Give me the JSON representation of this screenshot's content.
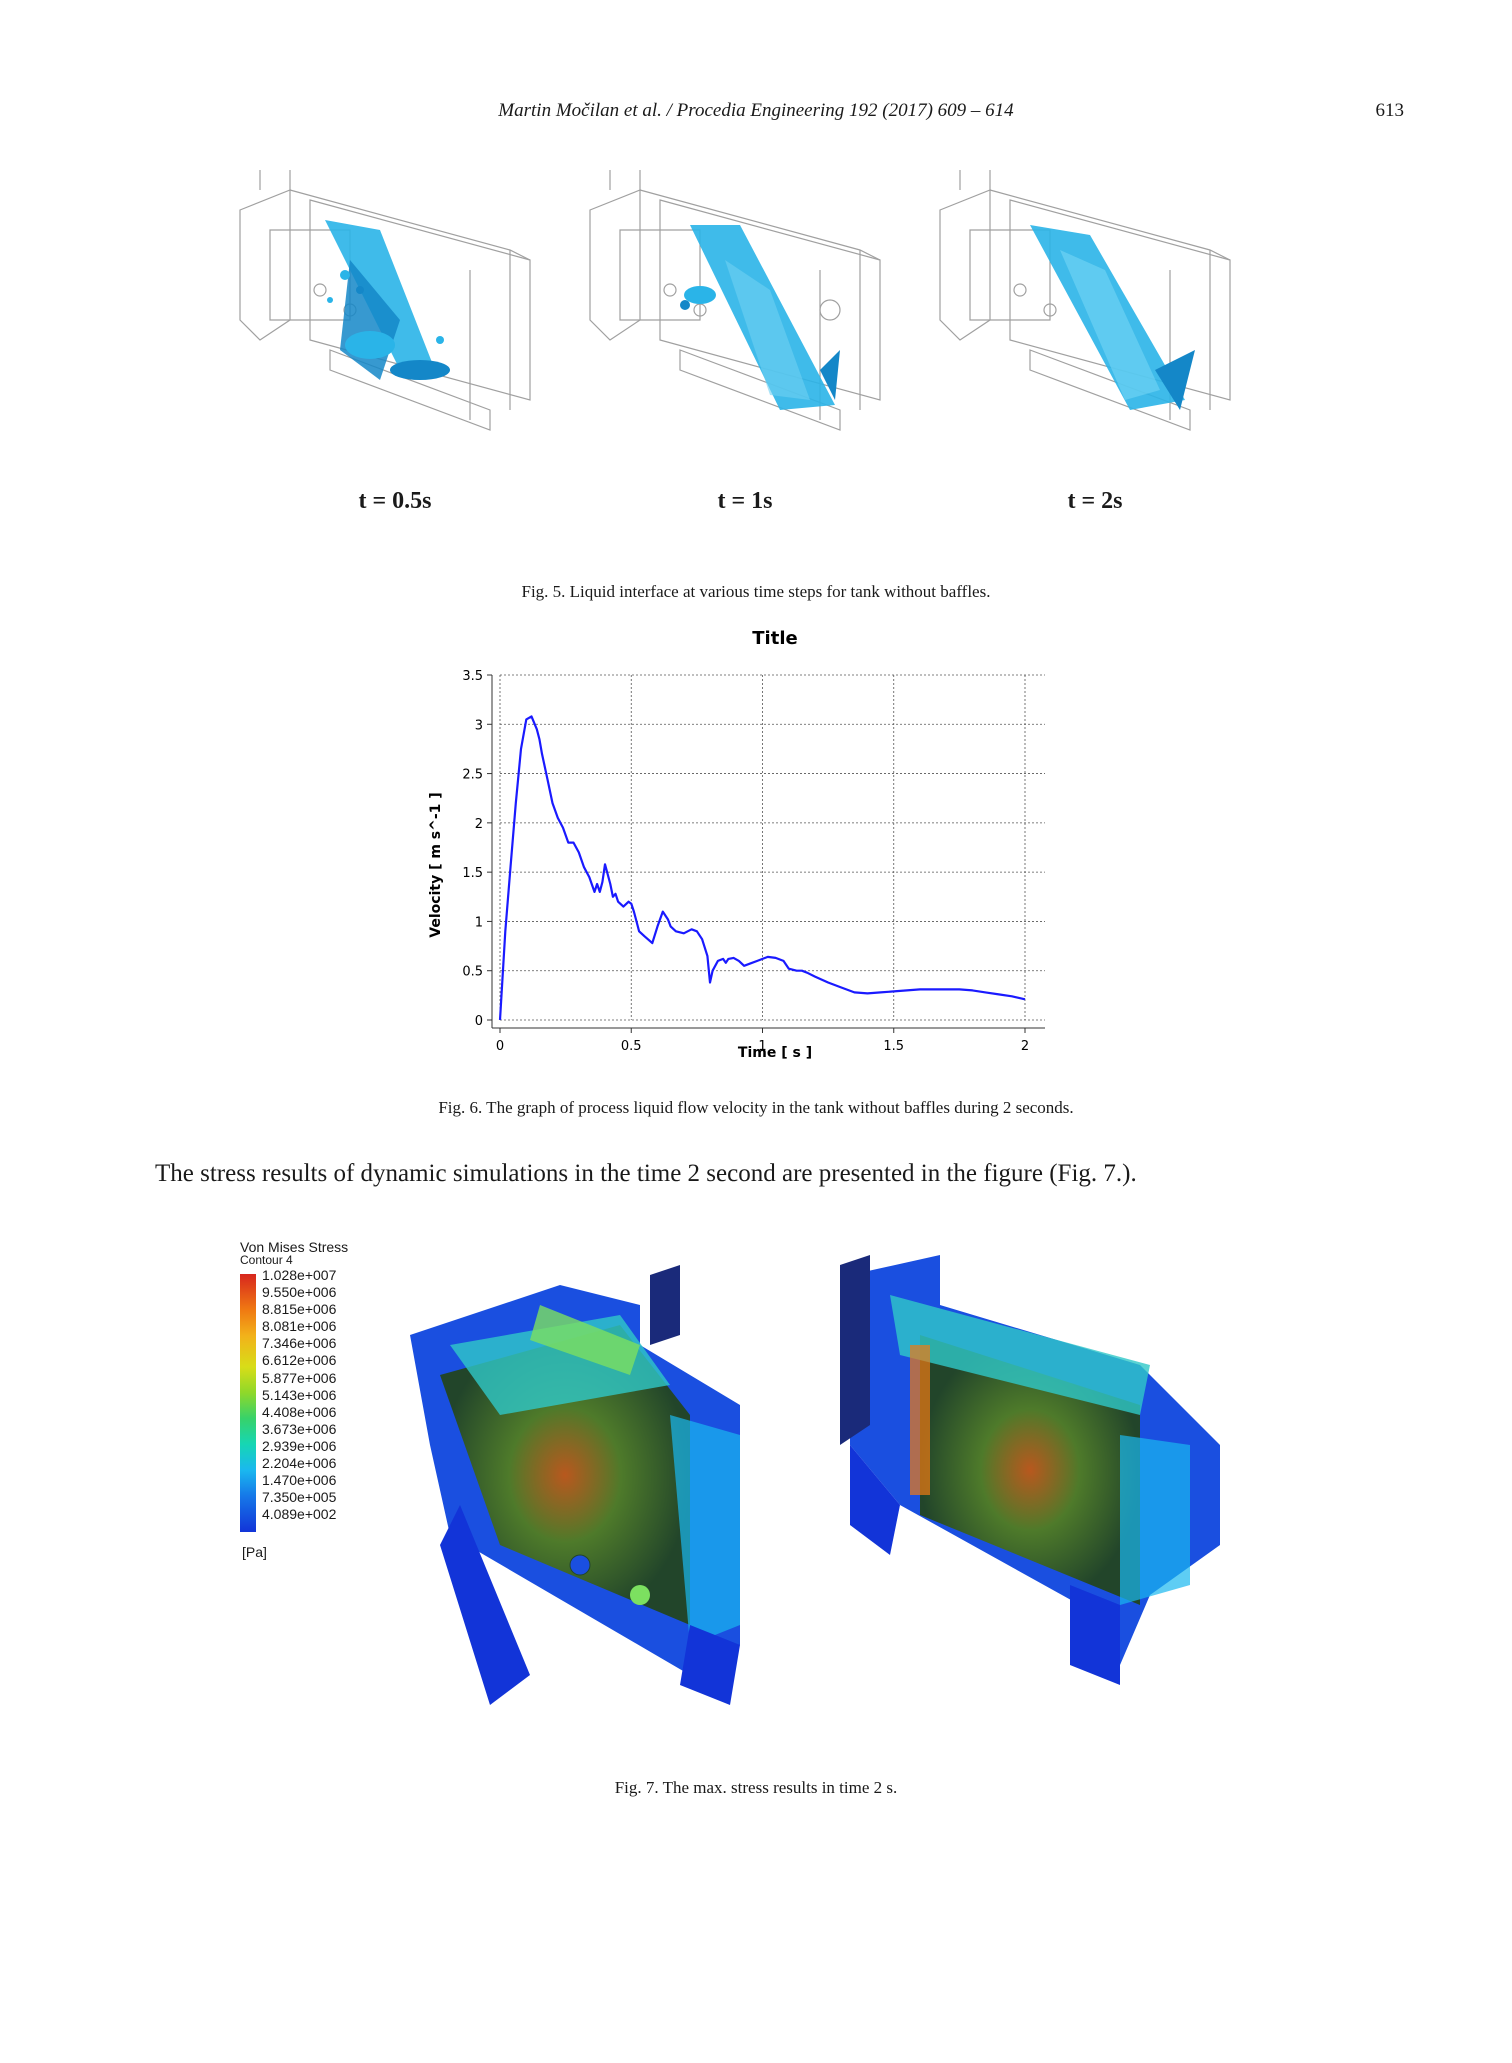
{
  "header": {
    "running_title": "Martin Močilan et al. / Procedia Engineering 192 (2017) 609 – 614",
    "page_number": "613"
  },
  "figure5": {
    "panels": [
      {
        "time_label": "t = 0.5s"
      },
      {
        "time_label": "t = 1s"
      },
      {
        "time_label": "t = 2s"
      }
    ],
    "caption": "Fig. 5. Liquid interface at various time steps for tank without baffles.",
    "colors": {
      "liquid": "#2ab4e8",
      "liquid_dark": "#1487c8",
      "wireframe": "#9a9a9a"
    }
  },
  "figure6": {
    "caption": "Fig. 6.  The graph of process liquid flow velocity in the tank without baffles during 2 seconds."
  },
  "chart_data": {
    "type": "line",
    "title": "Title",
    "xlabel": "Time [ s ]",
    "ylabel": "Velocity [ m s^-1 ]",
    "xlim": [
      0,
      2
    ],
    "ylim": [
      0,
      3.5
    ],
    "xticks": [
      0,
      0.5,
      1,
      1.5,
      2
    ],
    "xtick_labels": [
      "0",
      "0.5",
      "1",
      "1.5",
      "2"
    ],
    "yticks": [
      0,
      0.5,
      1,
      1.5,
      2,
      2.5,
      3,
      3.5
    ],
    "ytick_labels": [
      "0",
      "0.5",
      "1",
      "1.5",
      "2",
      "2.5",
      "3",
      "3.5"
    ],
    "grid": true,
    "series": [
      {
        "color": "#1a1aff",
        "x": [
          0,
          0.02,
          0.04,
          0.06,
          0.08,
          0.1,
          0.12,
          0.14,
          0.15,
          0.16,
          0.18,
          0.2,
          0.22,
          0.24,
          0.26,
          0.28,
          0.3,
          0.32,
          0.34,
          0.36,
          0.37,
          0.38,
          0.39,
          0.4,
          0.42,
          0.43,
          0.44,
          0.45,
          0.47,
          0.49,
          0.5,
          0.51,
          0.52,
          0.53,
          0.55,
          0.58,
          0.6,
          0.62,
          0.64,
          0.65,
          0.67,
          0.7,
          0.73,
          0.75,
          0.77,
          0.79,
          0.8,
          0.81,
          0.83,
          0.85,
          0.86,
          0.87,
          0.89,
          0.91,
          0.93,
          0.95,
          0.98,
          1.0,
          1.02,
          1.05,
          1.08,
          1.1,
          1.13,
          1.15,
          1.17,
          1.2,
          1.25,
          1.3,
          1.35,
          1.4,
          1.45,
          1.5,
          1.55,
          1.6,
          1.65,
          1.7,
          1.75,
          1.8,
          1.85,
          1.9,
          1.95,
          2.0
        ],
        "y": [
          0,
          0.9,
          1.55,
          2.2,
          2.75,
          3.05,
          3.08,
          2.95,
          2.85,
          2.7,
          2.45,
          2.2,
          2.05,
          1.95,
          1.8,
          1.8,
          1.7,
          1.55,
          1.45,
          1.3,
          1.38,
          1.3,
          1.4,
          1.58,
          1.38,
          1.25,
          1.28,
          1.2,
          1.15,
          1.2,
          1.18,
          1.1,
          1.0,
          0.9,
          0.85,
          0.78,
          0.95,
          1.1,
          1.02,
          0.95,
          0.9,
          0.88,
          0.92,
          0.9,
          0.82,
          0.65,
          0.38,
          0.5,
          0.6,
          0.62,
          0.58,
          0.62,
          0.63,
          0.6,
          0.55,
          0.57,
          0.6,
          0.62,
          0.64,
          0.63,
          0.6,
          0.52,
          0.5,
          0.5,
          0.48,
          0.44,
          0.38,
          0.33,
          0.28,
          0.27,
          0.28,
          0.29,
          0.3,
          0.31,
          0.31,
          0.31,
          0.31,
          0.3,
          0.28,
          0.26,
          0.24,
          0.21
        ]
      }
    ]
  },
  "body_text": "The stress results of dynamic simulations in the time 2 second are presented in the figure (Fig. 7.).",
  "figure7": {
    "legend": {
      "title": "Von Mises Stress",
      "subtitle": "Contour 4",
      "ticks": [
        "1.028e+007",
        "9.550e+006",
        "8.815e+006",
        "8.081e+006",
        "7.346e+006",
        "6.612e+006",
        "5.877e+006",
        "5.143e+006",
        "4.408e+006",
        "3.673e+006",
        "2.939e+006",
        "2.204e+006",
        "1.470e+006",
        "7.350e+005",
        "4.089e+002"
      ],
      "unit": "[Pa]"
    },
    "caption": "Fig. 7. The max. stress results in time 2 s.",
    "colors": {
      "low": "#1234d8",
      "mid": "#16d6b4",
      "high": "#d7261e",
      "panel": "#2d6a3a"
    }
  }
}
